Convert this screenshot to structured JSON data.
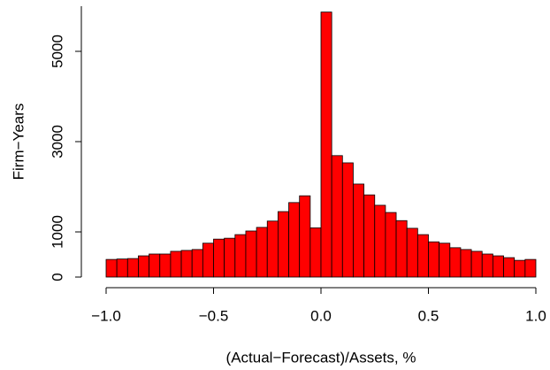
{
  "chart_data": {
    "type": "histogram",
    "x_label": "(Actual−Forecast)/Assets, %",
    "y_label": "Firm−Years",
    "bins": [
      -1.0,
      -0.95,
      -0.9,
      -0.85,
      -0.8,
      -0.75,
      -0.7,
      -0.65,
      -0.6,
      -0.55,
      -0.5,
      -0.45,
      -0.4,
      -0.35,
      -0.3,
      -0.25,
      -0.2,
      -0.15,
      -0.1,
      -0.05,
      0.0,
      0.05,
      0.1,
      0.15,
      0.2,
      0.25,
      0.3,
      0.35,
      0.4,
      0.45,
      0.5,
      0.55,
      0.6,
      0.65,
      0.7,
      0.75,
      0.8,
      0.85,
      0.9,
      0.95,
      1.0
    ],
    "values": [
      390,
      400,
      410,
      470,
      510,
      510,
      570,
      590,
      610,
      750,
      840,
      860,
      940,
      1020,
      1100,
      1240,
      1450,
      1650,
      1800,
      1090,
      5870,
      2690,
      2530,
      2060,
      1820,
      1590,
      1430,
      1250,
      1080,
      940,
      780,
      750,
      650,
      610,
      570,
      510,
      470,
      430,
      370,
      390
    ],
    "color": "#ff0000",
    "xlim": [
      -1.0,
      1.0
    ],
    "xticks": [
      {
        "value": -1.0,
        "label": "−1.0"
      },
      {
        "value": -0.5,
        "label": "−0.5"
      },
      {
        "value": 0.0,
        "label": "0.0"
      },
      0.5,
      {
        "value": 1.0,
        "label": "1.0"
      }
    ],
    "ylim": [
      0,
      6000
    ],
    "yticks": [
      0,
      1000,
      3000,
      5000
    ]
  }
}
